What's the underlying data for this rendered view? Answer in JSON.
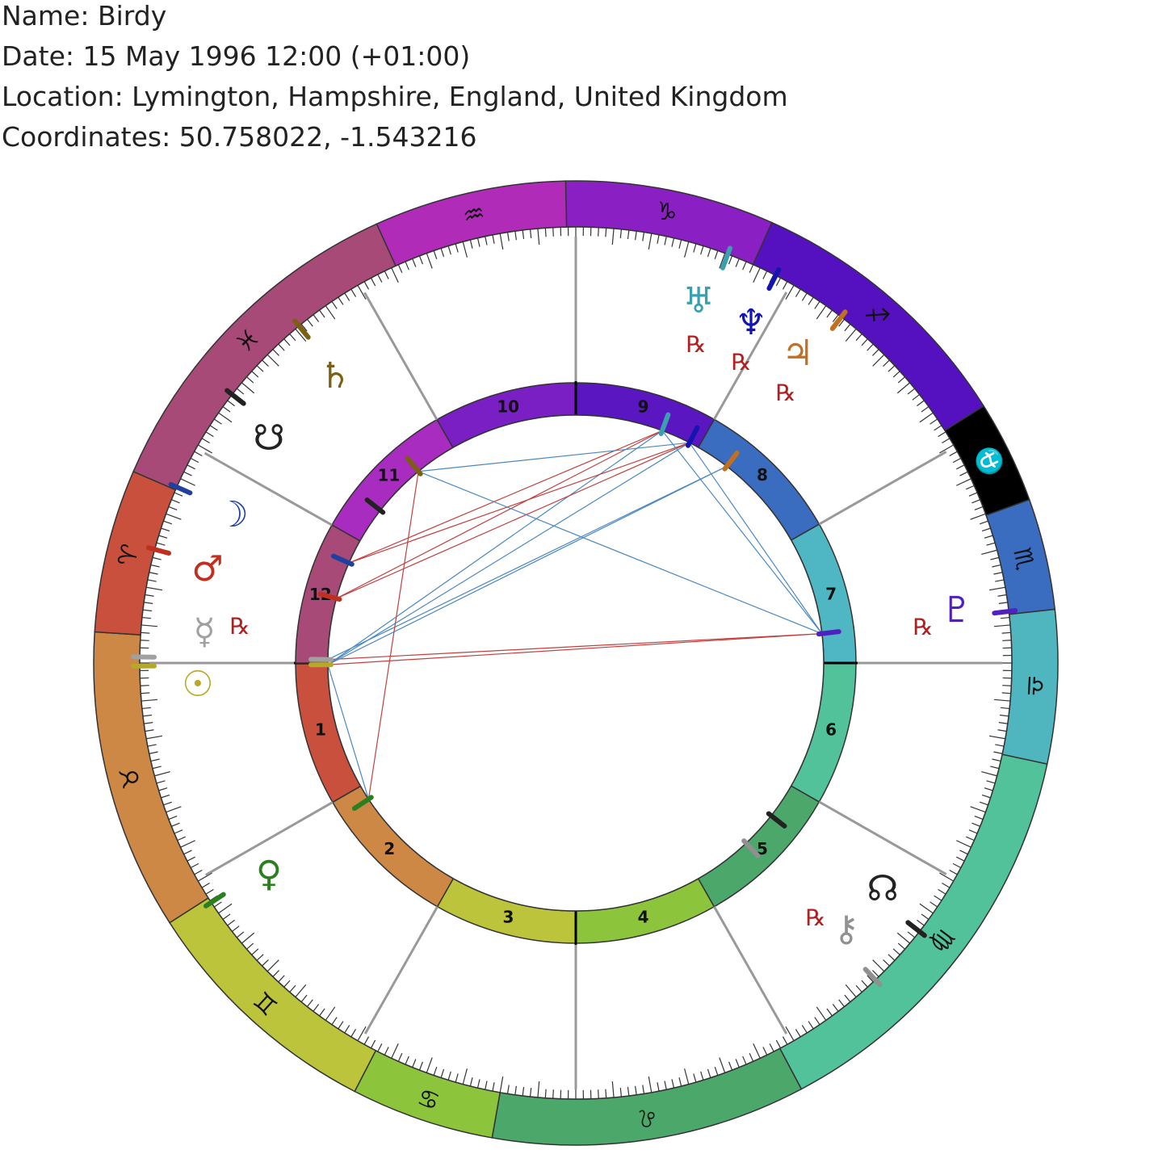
{
  "header": {
    "name": "Name: Birdy",
    "date": "Date: 15 May 1996 12:00 (+01:00)",
    "location": "Location: Lymington, Hampshire, England, United Kingdom",
    "coordinates": "Coordinates: 50.758022, -1.543216"
  },
  "signs": [
    "♒",
    "♑",
    "♐",
    "⛎",
    "♏",
    "♎",
    "♍",
    "♌",
    "♋",
    "♊",
    "♉",
    "♈",
    "♓"
  ],
  "houses": [
    "1",
    "2",
    "3",
    "4",
    "5",
    "6",
    "7",
    "8",
    "9",
    "10",
    "11",
    "12"
  ],
  "planets": [
    {
      "glyph": "♅",
      "retrograde": "℞"
    },
    {
      "glyph": "♆",
      "retrograde": "℞"
    },
    {
      "glyph": "♃",
      "retrograde": "℞"
    },
    {
      "glyph": "♄"
    },
    {
      "glyph": "☋"
    },
    {
      "glyph": "☽"
    },
    {
      "glyph": "♂"
    },
    {
      "glyph": "☿",
      "retrograde": "℞"
    },
    {
      "glyph": "☉"
    },
    {
      "glyph": "♀"
    },
    {
      "glyph": "☊"
    },
    {
      "glyph": "⚷",
      "retrograde": "℞"
    },
    {
      "glyph": "♇",
      "retrograde": "℞"
    }
  ]
}
